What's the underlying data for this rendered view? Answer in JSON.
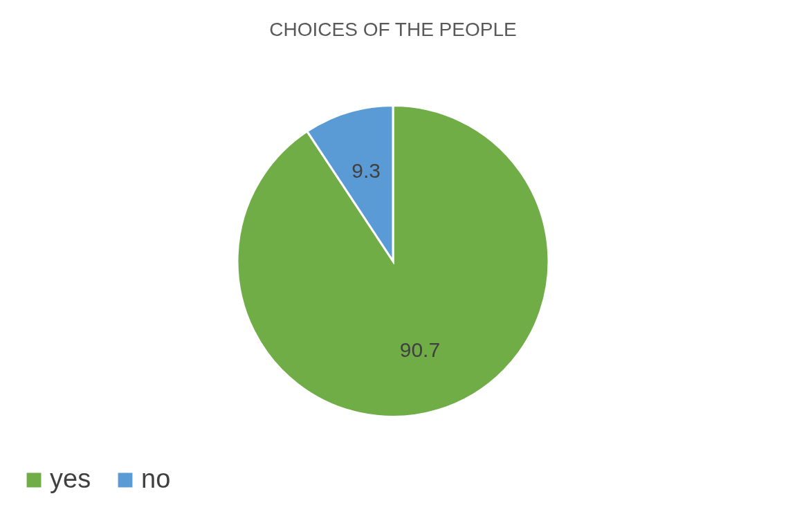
{
  "chart_data": {
    "type": "pie",
    "title": "CHOICES OF THE PEOPLE",
    "categories": [
      "yes",
      "no"
    ],
    "values": [
      90.7,
      9.3
    ],
    "colors": [
      "#70ad47",
      "#5b9bd5"
    ],
    "data_labels": true,
    "legend": "bottom"
  }
}
